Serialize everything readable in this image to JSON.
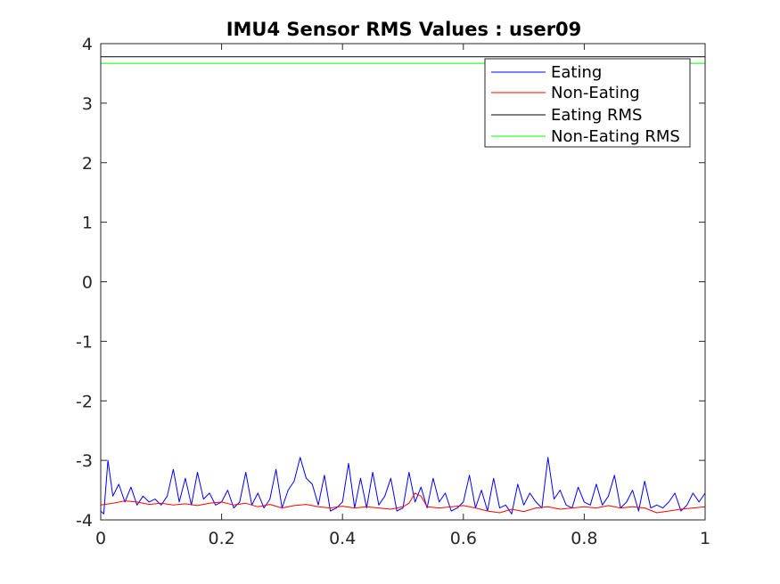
{
  "chart_data": {
    "type": "line",
    "title": "IMU4 Sensor RMS Values : user09",
    "xlabel": "",
    "ylabel": "",
    "xlim": [
      0,
      1
    ],
    "ylim": [
      -4,
      4
    ],
    "xticks": [
      0,
      0.2,
      0.4,
      0.6,
      0.8,
      1
    ],
    "xtick_labels": [
      "0",
      "0.2",
      "0.4",
      "0.6",
      "0.8",
      "1"
    ],
    "yticks": [
      -4,
      -3,
      -2,
      -1,
      0,
      1,
      2,
      3,
      4
    ],
    "ytick_labels": [
      "-4",
      "-3",
      "-2",
      "-1",
      "0",
      "1",
      "2",
      "3",
      "4"
    ],
    "grid": false,
    "legend_position": "top-right",
    "series": [
      {
        "name": "Eating",
        "color": "#0000ff",
        "x": [
          0,
          0.005,
          0.012,
          0.02,
          0.03,
          0.04,
          0.05,
          0.06,
          0.07,
          0.08,
          0.09,
          0.1,
          0.11,
          0.12,
          0.13,
          0.14,
          0.15,
          0.16,
          0.17,
          0.18,
          0.19,
          0.2,
          0.21,
          0.22,
          0.23,
          0.24,
          0.25,
          0.26,
          0.27,
          0.28,
          0.29,
          0.3,
          0.31,
          0.32,
          0.33,
          0.34,
          0.35,
          0.36,
          0.37,
          0.38,
          0.39,
          0.4,
          0.41,
          0.42,
          0.43,
          0.44,
          0.45,
          0.46,
          0.47,
          0.48,
          0.49,
          0.5,
          0.51,
          0.52,
          0.53,
          0.54,
          0.55,
          0.56,
          0.57,
          0.58,
          0.59,
          0.6,
          0.61,
          0.62,
          0.63,
          0.64,
          0.65,
          0.66,
          0.67,
          0.68,
          0.69,
          0.7,
          0.71,
          0.72,
          0.73,
          0.74,
          0.75,
          0.76,
          0.77,
          0.78,
          0.79,
          0.8,
          0.81,
          0.82,
          0.83,
          0.84,
          0.85,
          0.86,
          0.87,
          0.88,
          0.89,
          0.9,
          0.91,
          0.92,
          0.93,
          0.94,
          0.95,
          0.96,
          0.97,
          0.98,
          0.99,
          1
        ],
        "y": [
          -3.85,
          -3.9,
          -3.0,
          -3.6,
          -3.4,
          -3.7,
          -3.45,
          -3.75,
          -3.6,
          -3.7,
          -3.65,
          -3.75,
          -3.6,
          -3.15,
          -3.7,
          -3.3,
          -3.75,
          -3.2,
          -3.65,
          -3.55,
          -3.75,
          -3.7,
          -3.5,
          -3.8,
          -3.7,
          -3.2,
          -3.75,
          -3.55,
          -3.8,
          -3.65,
          -3.15,
          -3.8,
          -3.5,
          -3.35,
          -2.95,
          -3.3,
          -3.4,
          -3.75,
          -3.25,
          -3.85,
          -3.8,
          -3.7,
          -3.05,
          -3.8,
          -3.3,
          -3.8,
          -3.2,
          -3.75,
          -3.6,
          -3.3,
          -3.85,
          -3.8,
          -3.2,
          -3.7,
          -3.45,
          -3.8,
          -3.3,
          -3.7,
          -3.55,
          -3.85,
          -3.8,
          -3.7,
          -3.25,
          -3.8,
          -3.5,
          -3.85,
          -3.3,
          -3.8,
          -3.75,
          -3.9,
          -3.4,
          -3.75,
          -3.55,
          -3.7,
          -3.8,
          -2.95,
          -3.65,
          -3.5,
          -3.75,
          -3.8,
          -3.45,
          -3.7,
          -3.75,
          -3.4,
          -3.75,
          -3.6,
          -3.25,
          -3.8,
          -3.7,
          -3.5,
          -3.85,
          -3.35,
          -3.8,
          -3.75,
          -3.8,
          -3.7,
          -3.55,
          -3.85,
          -3.75,
          -3.55,
          -3.7,
          -3.55
        ]
      },
      {
        "name": "Non-Eating",
        "color": "#ff0000",
        "x": [
          0,
          0.02,
          0.04,
          0.06,
          0.08,
          0.1,
          0.12,
          0.14,
          0.16,
          0.18,
          0.2,
          0.22,
          0.24,
          0.26,
          0.28,
          0.3,
          0.32,
          0.34,
          0.36,
          0.38,
          0.4,
          0.42,
          0.44,
          0.46,
          0.48,
          0.5,
          0.51,
          0.52,
          0.53,
          0.54,
          0.56,
          0.58,
          0.6,
          0.62,
          0.64,
          0.66,
          0.68,
          0.7,
          0.72,
          0.74,
          0.76,
          0.78,
          0.8,
          0.82,
          0.84,
          0.86,
          0.88,
          0.9,
          0.92,
          0.94,
          0.96,
          0.98,
          1
        ],
        "y": [
          -3.75,
          -3.72,
          -3.68,
          -3.7,
          -3.74,
          -3.72,
          -3.75,
          -3.73,
          -3.76,
          -3.72,
          -3.7,
          -3.75,
          -3.72,
          -3.78,
          -3.74,
          -3.8,
          -3.76,
          -3.74,
          -3.78,
          -3.8,
          -3.77,
          -3.8,
          -3.78,
          -3.8,
          -3.82,
          -3.78,
          -3.72,
          -3.55,
          -3.6,
          -3.78,
          -3.8,
          -3.78,
          -3.76,
          -3.8,
          -3.85,
          -3.88,
          -3.82,
          -3.86,
          -3.8,
          -3.78,
          -3.82,
          -3.8,
          -3.78,
          -3.8,
          -3.76,
          -3.8,
          -3.78,
          -3.8,
          -3.88,
          -3.85,
          -3.82,
          -3.8,
          -3.78
        ]
      },
      {
        "name": "Eating RMS",
        "color": "#000000",
        "x": [
          0,
          1
        ],
        "y": [
          3.78,
          3.78
        ]
      },
      {
        "name": "Non-Eating RMS",
        "color": "#00ff00",
        "x": [
          0,
          1
        ],
        "y": [
          3.67,
          3.67
        ]
      }
    ]
  }
}
